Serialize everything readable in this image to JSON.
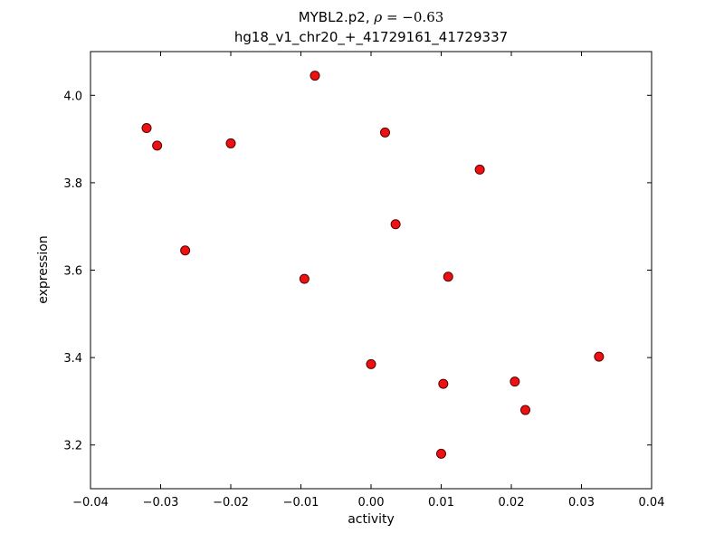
{
  "chart_data": {
    "type": "scatter",
    "title_prefix": "MYBL2.p2, ",
    "title_rho": "ρ",
    "title_rho_rest": " = −0.63",
    "subtitle": "hg18_v1_chr20_+_41729161_41729337",
    "xlabel": "activity",
    "ylabel": "expression",
    "xlim": [
      -0.04,
      0.04
    ],
    "ylim": [
      3.1,
      4.1
    ],
    "x_ticks": [
      -0.04,
      -0.03,
      -0.02,
      -0.01,
      0.0,
      0.01,
      0.02,
      0.03,
      0.04
    ],
    "x_tick_labels": [
      "−0.04",
      "−0.03",
      "−0.02",
      "−0.01",
      "0.00",
      "0.01",
      "0.02",
      "0.03",
      "0.04"
    ],
    "y_ticks": [
      3.2,
      3.4,
      3.6,
      3.8,
      4.0
    ],
    "y_tick_labels": [
      "3.2",
      "3.4",
      "3.6",
      "3.8",
      "4.0"
    ],
    "points": [
      [
        -0.032,
        3.925
      ],
      [
        -0.0305,
        3.885
      ],
      [
        -0.0265,
        3.645
      ],
      [
        -0.02,
        3.89
      ],
      [
        -0.0095,
        3.58
      ],
      [
        -0.008,
        4.045
      ],
      [
        0.0,
        3.385
      ],
      [
        0.002,
        3.915
      ],
      [
        0.0035,
        3.705
      ],
      [
        0.01,
        3.18
      ],
      [
        0.0103,
        3.34
      ],
      [
        0.011,
        3.585
      ],
      [
        0.0155,
        3.83
      ],
      [
        0.0205,
        3.345
      ],
      [
        0.022,
        3.28
      ],
      [
        0.0325,
        3.402
      ]
    ],
    "marker": {
      "fill": "#ee1111",
      "edge": "#550000",
      "radius": 5
    },
    "grid": false,
    "legend": null,
    "background": "#ffffff",
    "frame_color": "#000000"
  }
}
